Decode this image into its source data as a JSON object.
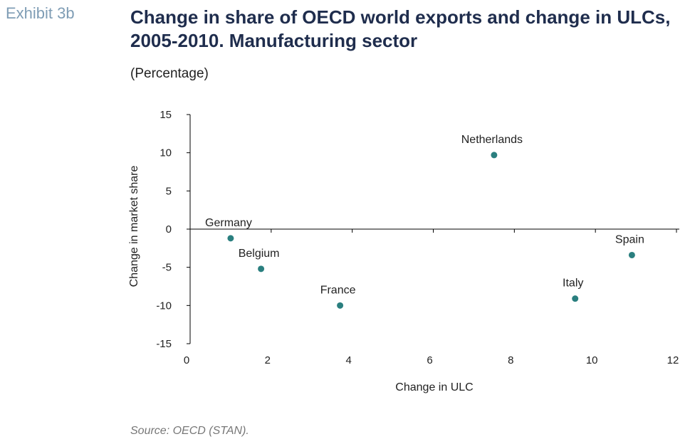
{
  "header": {
    "exhibit": "Exhibit 3b",
    "title": "Change in share of OECD world exports and change in ULCs, 2005-2010. Manufacturing sector",
    "subtitle": "(Percentage)"
  },
  "footer": {
    "source": "Source: OECD (STAN)."
  },
  "chart_data": {
    "type": "scatter",
    "xlabel": "Change in ULC",
    "ylabel": "Change in market share",
    "xlim": [
      0,
      12
    ],
    "ylim": [
      -15,
      15
    ],
    "xticks": [
      0,
      2,
      4,
      6,
      8,
      10,
      12
    ],
    "yticks": [
      15,
      10,
      5,
      0,
      -5,
      -10,
      -15
    ],
    "grid": false,
    "marker_color": "#2a7f7f",
    "points": [
      {
        "label": "Germany",
        "x": 1.0,
        "y": -1.2
      },
      {
        "label": "Belgium",
        "x": 1.75,
        "y": -5.2
      },
      {
        "label": "France",
        "x": 3.7,
        "y": -10.0
      },
      {
        "label": "Netherlands",
        "x": 7.5,
        "y": 9.7
      },
      {
        "label": "Italy",
        "x": 9.5,
        "y": -9.1
      },
      {
        "label": "Spain",
        "x": 10.9,
        "y": -3.4
      }
    ]
  }
}
